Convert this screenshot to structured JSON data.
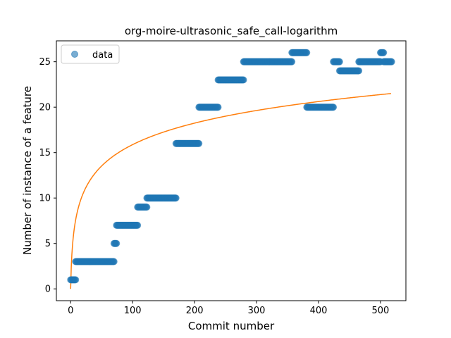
{
  "chart_data": {
    "type": "scatter",
    "title": "org-moire-ultrasonic_safe_call-logarithm",
    "xlabel": "Commit number",
    "ylabel": "Number of instance of a feature",
    "xlim": [
      -23,
      541
    ],
    "ylim": [
      -1.3,
      27.3
    ],
    "xticks": [
      0,
      100,
      200,
      300,
      400,
      500
    ],
    "yticks": [
      0,
      5,
      10,
      15,
      20,
      25
    ],
    "grid": false,
    "legend": {
      "position": "top-left",
      "entries": [
        "data"
      ]
    },
    "series": [
      {
        "name": "data",
        "kind": "scatter",
        "color": "#1f77b4",
        "segments": [
          {
            "x_start": 0,
            "x_end": 8,
            "y": 1
          },
          {
            "x_start": 8,
            "x_end": 70,
            "y": 3
          },
          {
            "x_start": 70,
            "x_end": 74,
            "y": 5
          },
          {
            "x_start": 74,
            "x_end": 108,
            "y": 7
          },
          {
            "x_start": 108,
            "x_end": 123,
            "y": 9
          },
          {
            "x_start": 123,
            "x_end": 170,
            "y": 10
          },
          {
            "x_start": 170,
            "x_end": 207,
            "y": 16
          },
          {
            "x_start": 207,
            "x_end": 238,
            "y": 20
          },
          {
            "x_start": 238,
            "x_end": 279,
            "y": 23
          },
          {
            "x_start": 279,
            "x_end": 357,
            "y": 25
          },
          {
            "x_start": 357,
            "x_end": 381,
            "y": 26
          },
          {
            "x_start": 381,
            "x_end": 424,
            "y": 20
          },
          {
            "x_start": 424,
            "x_end": 434,
            "y": 25
          },
          {
            "x_start": 434,
            "x_end": 465,
            "y": 24
          },
          {
            "x_start": 465,
            "x_end": 500,
            "y": 25
          },
          {
            "x_start": 500,
            "x_end": 505,
            "y": 26
          },
          {
            "x_start": 505,
            "x_end": 518,
            "y": 25
          }
        ]
      },
      {
        "name": "",
        "kind": "line",
        "color": "#ff7f0e",
        "fit": {
          "model": "a*ln(x+1)",
          "a": 3.44,
          "x_start": 0,
          "x_end": 517
        }
      }
    ]
  }
}
